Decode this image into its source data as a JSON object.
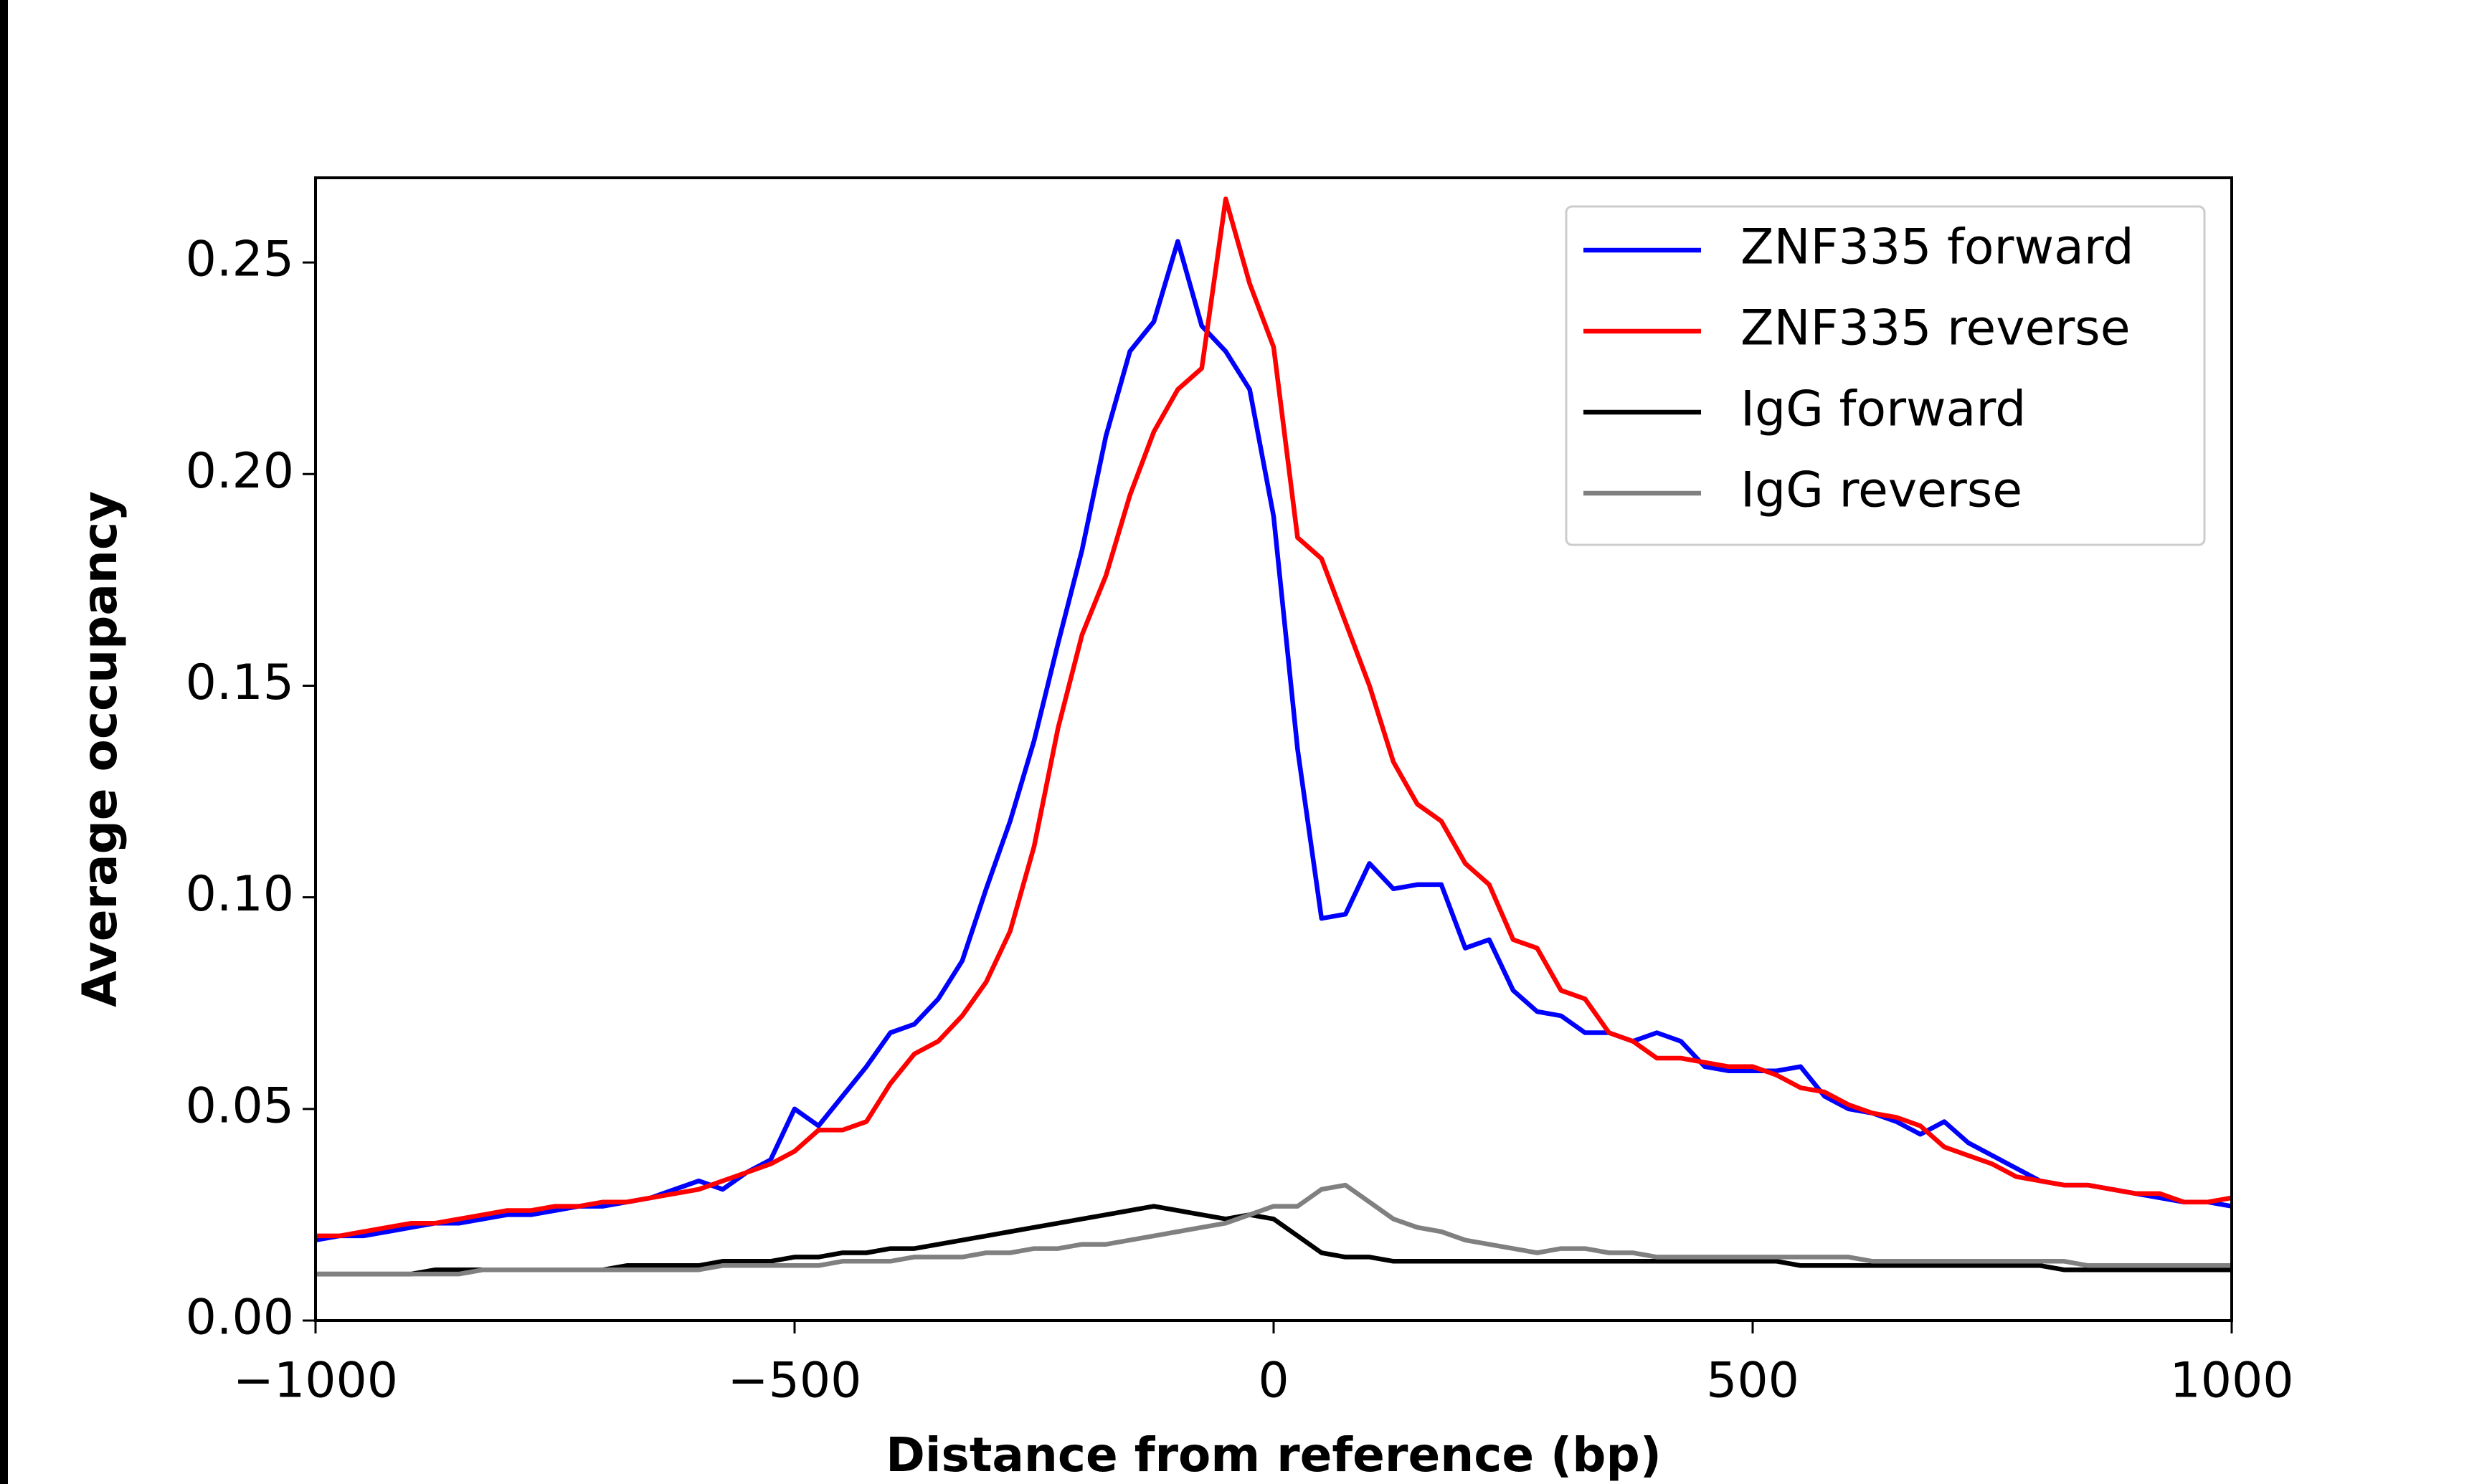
{
  "chart_data": {
    "type": "line",
    "xlabel": "Distance from reference (bp)",
    "ylabel": "Average occupancy",
    "x": [
      -1000,
      -975,
      -950,
      -925,
      -900,
      -875,
      -850,
      -825,
      -800,
      -775,
      -750,
      -725,
      -700,
      -675,
      -650,
      -625,
      -600,
      -575,
      -550,
      -525,
      -500,
      -475,
      -450,
      -425,
      -400,
      -375,
      -350,
      -325,
      -300,
      -275,
      -250,
      -225,
      -200,
      -175,
      -150,
      -125,
      -100,
      -75,
      -50,
      -25,
      0,
      25,
      50,
      75,
      100,
      125,
      150,
      175,
      200,
      225,
      250,
      275,
      300,
      325,
      350,
      375,
      400,
      425,
      450,
      475,
      500,
      525,
      550,
      575,
      600,
      625,
      650,
      675,
      700,
      725,
      750,
      775,
      800,
      825,
      850,
      875,
      900,
      925,
      950,
      975,
      1000
    ],
    "series": [
      {
        "name": "ZNF335 forward",
        "color": "#0000ff",
        "values": [
          0.019,
          0.02,
          0.02,
          0.021,
          0.022,
          0.023,
          0.023,
          0.024,
          0.025,
          0.025,
          0.026,
          0.027,
          0.027,
          0.028,
          0.029,
          0.031,
          0.033,
          0.031,
          0.035,
          0.038,
          0.05,
          0.046,
          0.053,
          0.06,
          0.068,
          0.07,
          0.076,
          0.085,
          0.102,
          0.118,
          0.137,
          0.16,
          0.182,
          0.209,
          0.229,
          0.236,
          0.255,
          0.235,
          0.229,
          0.22,
          0.19,
          0.135,
          0.095,
          0.096,
          0.108,
          0.102,
          0.103,
          0.103,
          0.088,
          0.09,
          0.078,
          0.073,
          0.072,
          0.068,
          0.068,
          0.066,
          0.068,
          0.066,
          0.06,
          0.059,
          0.059,
          0.059,
          0.06,
          0.053,
          0.05,
          0.049,
          0.047,
          0.044,
          0.047,
          0.042,
          0.039,
          0.036,
          0.033,
          0.032,
          0.032,
          0.031,
          0.03,
          0.029,
          0.028,
          0.028,
          0.027
        ]
      },
      {
        "name": "ZNF335 reverse",
        "color": "#ff0000",
        "values": [
          0.02,
          0.02,
          0.021,
          0.022,
          0.023,
          0.023,
          0.024,
          0.025,
          0.026,
          0.026,
          0.027,
          0.027,
          0.028,
          0.028,
          0.029,
          0.03,
          0.031,
          0.033,
          0.035,
          0.037,
          0.04,
          0.045,
          0.045,
          0.047,
          0.056,
          0.063,
          0.066,
          0.072,
          0.08,
          0.092,
          0.112,
          0.14,
          0.162,
          0.176,
          0.195,
          0.21,
          0.22,
          0.225,
          0.265,
          0.245,
          0.23,
          0.185,
          0.18,
          0.165,
          0.15,
          0.132,
          0.122,
          0.118,
          0.108,
          0.103,
          0.09,
          0.088,
          0.078,
          0.076,
          0.068,
          0.066,
          0.062,
          0.062,
          0.061,
          0.06,
          0.06,
          0.058,
          0.055,
          0.054,
          0.051,
          0.049,
          0.048,
          0.046,
          0.041,
          0.039,
          0.037,
          0.034,
          0.033,
          0.032,
          0.032,
          0.031,
          0.03,
          0.03,
          0.028,
          0.028,
          0.029
        ]
      },
      {
        "name": "IgG forward",
        "color": "#000000",
        "values": [
          0.011,
          0.011,
          0.011,
          0.011,
          0.011,
          0.012,
          0.012,
          0.012,
          0.012,
          0.012,
          0.012,
          0.012,
          0.012,
          0.013,
          0.013,
          0.013,
          0.013,
          0.014,
          0.014,
          0.014,
          0.015,
          0.015,
          0.016,
          0.016,
          0.017,
          0.017,
          0.018,
          0.019,
          0.02,
          0.021,
          0.022,
          0.023,
          0.024,
          0.025,
          0.026,
          0.027,
          0.026,
          0.025,
          0.024,
          0.025,
          0.024,
          0.02,
          0.016,
          0.015,
          0.015,
          0.014,
          0.014,
          0.014,
          0.014,
          0.014,
          0.014,
          0.014,
          0.014,
          0.014,
          0.014,
          0.014,
          0.014,
          0.014,
          0.014,
          0.014,
          0.014,
          0.014,
          0.013,
          0.013,
          0.013,
          0.013,
          0.013,
          0.013,
          0.013,
          0.013,
          0.013,
          0.013,
          0.013,
          0.012,
          0.012,
          0.012,
          0.012,
          0.012,
          0.012,
          0.012,
          0.012
        ]
      },
      {
        "name": "IgG reverse",
        "color": "#808080",
        "values": [
          0.011,
          0.011,
          0.011,
          0.011,
          0.011,
          0.011,
          0.011,
          0.012,
          0.012,
          0.012,
          0.012,
          0.012,
          0.012,
          0.012,
          0.012,
          0.012,
          0.012,
          0.013,
          0.013,
          0.013,
          0.013,
          0.013,
          0.014,
          0.014,
          0.014,
          0.015,
          0.015,
          0.015,
          0.016,
          0.016,
          0.017,
          0.017,
          0.018,
          0.018,
          0.019,
          0.02,
          0.021,
          0.022,
          0.023,
          0.025,
          0.027,
          0.027,
          0.031,
          0.032,
          0.028,
          0.024,
          0.022,
          0.021,
          0.019,
          0.018,
          0.017,
          0.016,
          0.017,
          0.017,
          0.016,
          0.016,
          0.015,
          0.015,
          0.015,
          0.015,
          0.015,
          0.015,
          0.015,
          0.015,
          0.015,
          0.014,
          0.014,
          0.014,
          0.014,
          0.014,
          0.014,
          0.014,
          0.014,
          0.014,
          0.013,
          0.013,
          0.013,
          0.013,
          0.013,
          0.013,
          0.013
        ]
      }
    ],
    "xlim": [
      -1000,
      1000
    ],
    "xticks": [
      {
        "value": -1000,
        "label": "−1000"
      },
      {
        "value": -500,
        "label": "−500"
      },
      0,
      500,
      1000
    ],
    "ylim": [
      0,
      0.27
    ],
    "yticks": [
      {
        "value": 0,
        "label": "0.00"
      },
      0.05,
      {
        "value": 0.1,
        "label": "0.10"
      },
      0.15,
      {
        "value": 0.2,
        "label": "0.20"
      },
      0.25
    ],
    "grid": false,
    "legend": "upper right"
  }
}
